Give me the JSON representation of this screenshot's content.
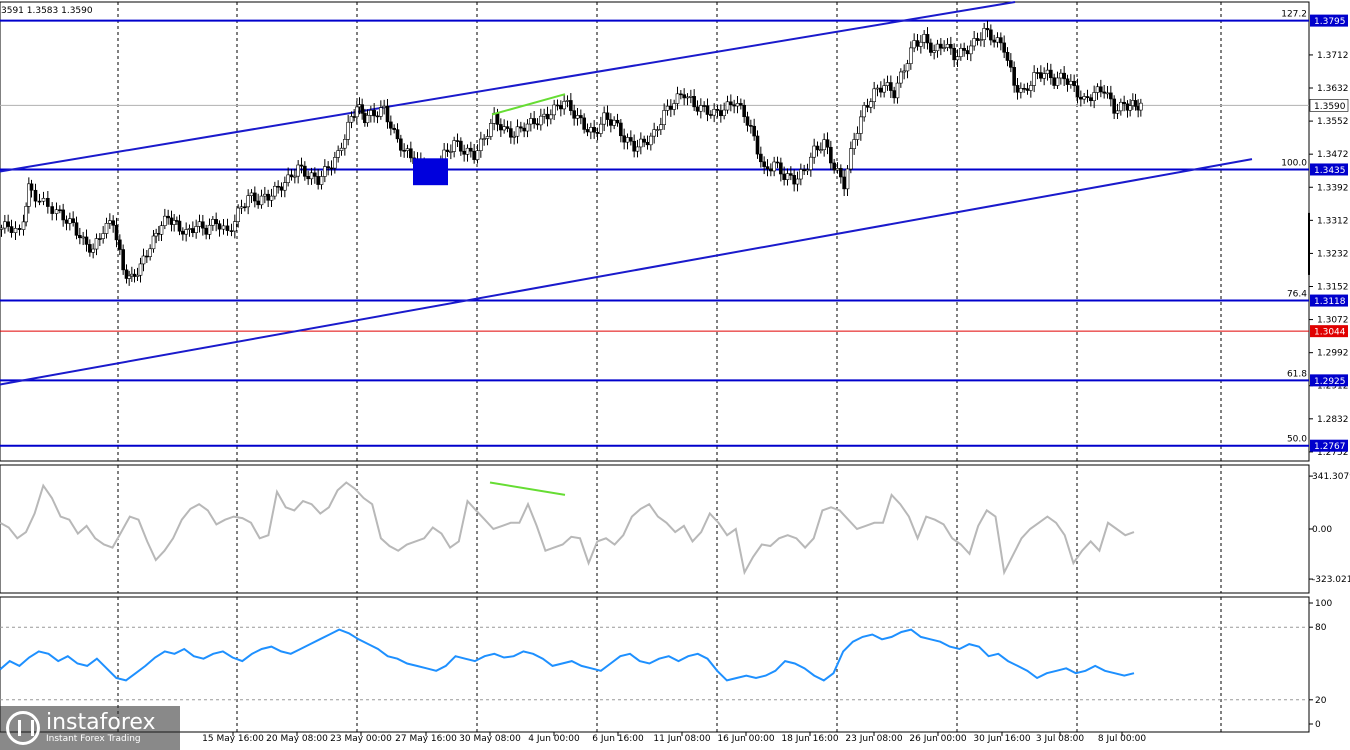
{
  "header": {
    "ohlc_text": "3591 1.3583 1.3590"
  },
  "brand": {
    "name": "instaforex",
    "tagline": "Instant Forex Trading"
  },
  "colors": {
    "level_line": "#0000cc",
    "channel_line": "#1a1acc",
    "red_level": "#e00000",
    "current_price_line": "#b0b0b0",
    "divergence": "#66dd33",
    "cci_line": "#b8b8b8",
    "rsi_line": "#1e90ff",
    "tag_bg": "#0000cc",
    "red_tag_bg": "#e00000"
  },
  "chart_data": [
    {
      "type": "candlestick",
      "panel": "price",
      "ylim": [
        1.273,
        1.384
      ],
      "x_ticks": [
        "15 May 16:00",
        "20 May 08:00",
        "23 May 00:00",
        "27 May 16:00",
        "30 May 08:00",
        "4 Jun 00:00",
        "6 Jun 16:00",
        "11 Jun 08:00",
        "16 Jun 00:00",
        "18 Jun 16:00",
        "23 Jun 08:00",
        "26 Jun 00:00",
        "30 Jun 16:00",
        "3 Jul 08:00",
        "8 Jul 00:00"
      ],
      "y_ticks": [
        "1.3712",
        "1.3632",
        "1.3552",
        "1.3472",
        "1.3392",
        "1.3312",
        "1.3232",
        "1.3152",
        "1.3072",
        "1.2992",
        "1.2912",
        "1.2832",
        "1.2752"
      ],
      "current_price": "1.3590",
      "horizontal_levels": [
        {
          "price": 1.3795,
          "tag": "1.3795",
          "fib": "127.2"
        },
        {
          "price": 1.3435,
          "tag": "1.3435",
          "fib": "100.0"
        },
        {
          "price": 1.3118,
          "tag": "1.3118",
          "fib": "76.4"
        },
        {
          "price": 1.3044,
          "tag": "1.3044",
          "fib": ""
        },
        {
          "price": 1.2925,
          "tag": "1.2925",
          "fib": "61.8"
        },
        {
          "price": 1.2767,
          "tag": "1.2767",
          "fib": "50.0"
        }
      ],
      "channel": {
        "upper": [
          [
            0,
            1.343
          ],
          [
            1015,
            1.384
          ]
        ],
        "lower": [
          [
            0,
            1.2915
          ],
          [
            1252,
            1.346
          ]
        ]
      },
      "divergence": [
        [
          492,
          1.3568
        ],
        [
          565,
          1.3617
        ]
      ],
      "highlight_zone": {
        "from_bar": 413,
        "to_bar": 448,
        "price_top": 1.3462,
        "price_bottom": 1.3397
      },
      "series_close_path": [
        [
          0,
          1.329
        ],
        [
          10,
          1.33
        ],
        [
          22,
          1.328
        ],
        [
          30,
          1.339
        ],
        [
          42,
          1.336
        ],
        [
          55,
          1.334
        ],
        [
          65,
          1.332
        ],
        [
          75,
          1.33
        ],
        [
          85,
          1.326
        ],
        [
          95,
          1.324
        ],
        [
          105,
          1.329
        ],
        [
          115,
          1.331
        ],
        [
          125,
          1.319
        ],
        [
          133,
          1.317
        ],
        [
          142,
          1.32
        ],
        [
          152,
          1.325
        ],
        [
          160,
          1.329
        ],
        [
          170,
          1.332
        ],
        [
          178,
          1.33
        ],
        [
          188,
          1.328
        ],
        [
          198,
          1.33
        ],
        [
          208,
          1.329
        ],
        [
          218,
          1.331
        ],
        [
          230,
          1.328
        ],
        [
          240,
          1.333
        ],
        [
          250,
          1.337
        ],
        [
          260,
          1.336
        ],
        [
          270,
          1.337
        ],
        [
          280,
          1.339
        ],
        [
          290,
          1.341
        ],
        [
          300,
          1.344
        ],
        [
          310,
          1.342
        ],
        [
          320,
          1.341
        ],
        [
          330,
          1.344
        ],
        [
          340,
          1.347
        ],
        [
          350,
          1.354
        ],
        [
          358,
          1.359
        ],
        [
          366,
          1.356
        ],
        [
          376,
          1.357
        ],
        [
          386,
          1.358
        ],
        [
          396,
          1.352
        ],
        [
          406,
          1.348
        ],
        [
          416,
          1.346
        ],
        [
          426,
          1.344
        ],
        [
          436,
          1.342
        ],
        [
          446,
          1.347
        ],
        [
          456,
          1.35
        ],
        [
          466,
          1.348
        ],
        [
          476,
          1.347
        ],
        [
          486,
          1.351
        ],
        [
          496,
          1.356
        ],
        [
          506,
          1.353
        ],
        [
          516,
          1.352
        ],
        [
          526,
          1.354
        ],
        [
          536,
          1.355
        ],
        [
          546,
          1.356
        ],
        [
          556,
          1.358
        ],
        [
          566,
          1.36
        ],
        [
          576,
          1.357
        ],
        [
          586,
          1.354
        ],
        [
          596,
          1.352
        ],
        [
          606,
          1.356
        ],
        [
          616,
          1.355
        ],
        [
          626,
          1.351
        ],
        [
          636,
          1.349
        ],
        [
          646,
          1.35
        ],
        [
          656,
          1.352
        ],
        [
          666,
          1.357
        ],
        [
          676,
          1.36
        ],
        [
          686,
          1.362
        ],
        [
          696,
          1.359
        ],
        [
          706,
          1.358
        ],
        [
          716,
          1.357
        ],
        [
          726,
          1.358
        ],
        [
          736,
          1.36
        ],
        [
          746,
          1.357
        ],
        [
          756,
          1.351
        ],
        [
          766,
          1.343
        ],
        [
          776,
          1.345
        ],
        [
          786,
          1.342
        ],
        [
          796,
          1.341
        ],
        [
          806,
          1.343
        ],
        [
          816,
          1.348
        ],
        [
          826,
          1.35
        ],
        [
          836,
          1.344
        ],
        [
          846,
          1.34
        ],
        [
          856,
          1.351
        ],
        [
          866,
          1.358
        ],
        [
          876,
          1.362
        ],
        [
          886,
          1.364
        ],
        [
          896,
          1.362
        ],
        [
          906,
          1.368
        ],
        [
          916,
          1.374
        ],
        [
          926,
          1.375
        ],
        [
          936,
          1.372
        ],
        [
          946,
          1.374
        ],
        [
          956,
          1.371
        ],
        [
          966,
          1.372
        ],
        [
          976,
          1.374
        ],
        [
          986,
          1.377
        ],
        [
          996,
          1.375
        ],
        [
          1006,
          1.373
        ],
        [
          1016,
          1.364
        ],
        [
          1026,
          1.362
        ],
        [
          1036,
          1.366
        ],
        [
          1046,
          1.367
        ],
        [
          1056,
          1.365
        ],
        [
          1066,
          1.366
        ],
        [
          1076,
          1.363
        ],
        [
          1086,
          1.36
        ],
        [
          1096,
          1.362
        ],
        [
          1106,
          1.363
        ],
        [
          1116,
          1.358
        ],
        [
          1126,
          1.359
        ],
        [
          1134,
          1.359
        ]
      ]
    },
    {
      "type": "line",
      "panel": "cci",
      "ylim": [
        -400,
        400
      ],
      "y_ticks": [
        "341.3079",
        "0.00",
        "-323.021"
      ],
      "values": [
        40,
        10,
        -60,
        -20,
        100,
        280,
        200,
        80,
        60,
        -30,
        20,
        -60,
        -100,
        -120,
        -20,
        80,
        60,
        -80,
        -200,
        -140,
        -60,
        60,
        130,
        160,
        120,
        30,
        60,
        80,
        70,
        40,
        -60,
        -40,
        240,
        140,
        120,
        180,
        160,
        100,
        140,
        250,
        300,
        260,
        200,
        160,
        -60,
        -110,
        -140,
        -100,
        -80,
        -60,
        10,
        -30,
        -120,
        -80,
        180,
        120,
        60,
        0,
        20,
        40,
        40,
        160,
        20,
        -140,
        -120,
        -100,
        -50,
        -60,
        -220,
        -80,
        -60,
        -100,
        -40,
        80,
        130,
        160,
        80,
        40,
        -20,
        20,
        -80,
        -20,
        100,
        40,
        -40,
        0,
        -280,
        -180,
        -100,
        -110,
        -60,
        -40,
        -60,
        -120,
        -60,
        120,
        140,
        120,
        60,
        0,
        20,
        40,
        40,
        220,
        160,
        80,
        -60,
        80,
        60,
        30,
        -60,
        -100,
        -160,
        20,
        120,
        80,
        -280,
        -170,
        -60,
        0,
        40,
        80,
        40,
        -40,
        -220,
        -140,
        -80,
        -140,
        40,
        0,
        -40,
        -20
      ]
    },
    {
      "type": "line",
      "panel": "rsi",
      "ylim": [
        0,
        100
      ],
      "y_ticks": [
        "100",
        "80",
        "20",
        "0"
      ],
      "levels": [
        80,
        20
      ],
      "values": [
        45,
        52,
        48,
        55,
        60,
        58,
        52,
        56,
        50,
        48,
        54,
        46,
        38,
        36,
        42,
        48,
        55,
        60,
        58,
        62,
        56,
        54,
        58,
        60,
        55,
        52,
        58,
        62,
        64,
        60,
        58,
        62,
        66,
        70,
        74,
        78,
        75,
        70,
        66,
        62,
        56,
        54,
        50,
        48,
        46,
        44,
        48,
        56,
        54,
        52,
        56,
        58,
        55,
        56,
        60,
        58,
        54,
        48,
        50,
        52,
        48,
        46,
        44,
        50,
        56,
        58,
        52,
        50,
        54,
        56,
        52,
        56,
        58,
        54,
        44,
        36,
        38,
        40,
        38,
        40,
        44,
        52,
        50,
        46,
        40,
        36,
        42,
        60,
        68,
        72,
        74,
        70,
        72,
        76,
        78,
        72,
        70,
        68,
        64,
        62,
        66,
        64,
        56,
        58,
        52,
        48,
        44,
        38,
        42,
        44,
        46,
        42,
        44,
        48,
        44,
        42,
        40,
        42
      ]
    }
  ]
}
